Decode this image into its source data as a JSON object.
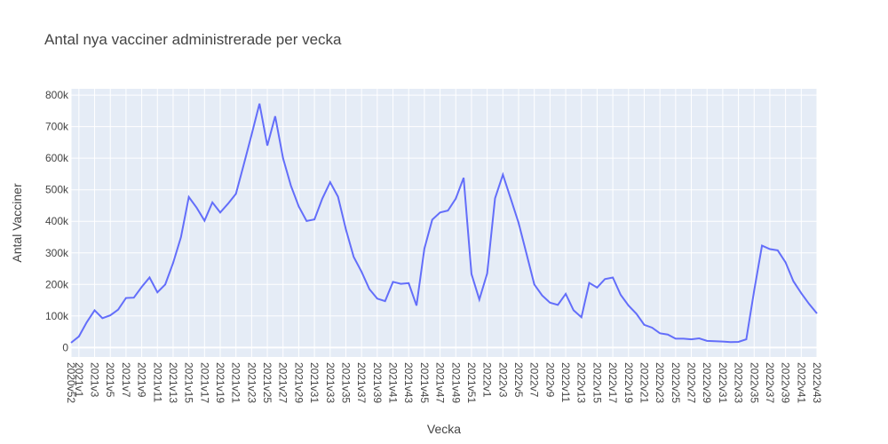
{
  "chart_data": {
    "type": "line",
    "title": "Antal nya vacciner administrerade per vecka",
    "xlabel": "Vecka",
    "ylabel": "Antal Vacciner",
    "ylim": [
      -30000,
      820000
    ],
    "y_ticks": [
      0,
      100000,
      200000,
      300000,
      400000,
      500000,
      600000,
      700000,
      800000
    ],
    "y_tick_labels": [
      "0",
      "100k",
      "200k",
      "300k",
      "400k",
      "500k",
      "600k",
      "700k",
      "800k"
    ],
    "x_tick_labels": [
      "2020v52",
      "2021v1",
      "2021v3",
      "2021v5",
      "2021v7",
      "2021v9",
      "2021v11",
      "2021v13",
      "2021v15",
      "2021v17",
      "2021v19",
      "2021v21",
      "2021v23",
      "2021v25",
      "2021v27",
      "2021v29",
      "2021v31",
      "2021v33",
      "2021v35",
      "2021v37",
      "2021v39",
      "2021v41",
      "2021v43",
      "2021v45",
      "2021v47",
      "2021v49",
      "2021v51",
      "2022v1",
      "2022v3",
      "2022v5",
      "2022v7",
      "2022v9",
      "2022v11",
      "2022v13",
      "2022v15",
      "2022v17",
      "2022v19",
      "2022v21",
      "2022v23",
      "2022v25",
      "2022v27",
      "2022v29",
      "2022v31",
      "2022v33",
      "2022v35",
      "2022v37",
      "2022v39",
      "2022v41",
      "2022v43"
    ],
    "grid": true,
    "colors": {
      "line": "#636efa",
      "plot_bg": "#e5ecf6",
      "grid": "#ffffff"
    },
    "categories": [
      "2020v52",
      "2021v1",
      "2021v2",
      "2021v3",
      "2021v4",
      "2021v5",
      "2021v6",
      "2021v7",
      "2021v8",
      "2021v9",
      "2021v10",
      "2021v11",
      "2021v12",
      "2021v13",
      "2021v14",
      "2021v15",
      "2021v16",
      "2021v17",
      "2021v18",
      "2021v19",
      "2021v20",
      "2021v21",
      "2021v22",
      "2021v23",
      "2021v24",
      "2021v25",
      "2021v26",
      "2021v27",
      "2021v28",
      "2021v29",
      "2021v30",
      "2021v31",
      "2021v32",
      "2021v33",
      "2021v34",
      "2021v35",
      "2021v36",
      "2021v37",
      "2021v38",
      "2021v39",
      "2021v40",
      "2021v41",
      "2021v42",
      "2021v43",
      "2021v44",
      "2021v45",
      "2021v46",
      "2021v47",
      "2021v48",
      "2021v49",
      "2021v50",
      "2021v51",
      "2021v52",
      "2022v1",
      "2022v2",
      "2022v3",
      "2022v4",
      "2022v5",
      "2022v6",
      "2022v7",
      "2022v8",
      "2022v9",
      "2022v10",
      "2022v11",
      "2022v12",
      "2022v13",
      "2022v14",
      "2022v15",
      "2022v16",
      "2022v17",
      "2022v18",
      "2022v19",
      "2022v20",
      "2022v21",
      "2022v22",
      "2022v23",
      "2022v24",
      "2022v25",
      "2022v26",
      "2022v27",
      "2022v28",
      "2022v29",
      "2022v30",
      "2022v31",
      "2022v32",
      "2022v33",
      "2022v34",
      "2022v35",
      "2022v36",
      "2022v37",
      "2022v38",
      "2022v39",
      "2022v40",
      "2022v41",
      "2022v42",
      "2022v43"
    ],
    "series": [
      {
        "values": [
          15000,
          35000,
          80000,
          118000,
          93000,
          102000,
          120000,
          157000,
          158000,
          192000,
          222000,
          175000,
          200000,
          268000,
          350000,
          477000,
          443000,
          402000,
          460000,
          428000,
          456000,
          487000,
          580000,
          675000,
          773000,
          640000,
          733000,
          600000,
          513000,
          447000,
          401000,
          406000,
          472000,
          524000,
          478000,
          375000,
          287000,
          240000,
          185000,
          155000,
          147000,
          208000,
          202000,
          204000,
          133000,
          313000,
          405000,
          428000,
          434000,
          472000,
          538000,
          233000,
          152000,
          235000,
          473000,
          548000,
          472000,
          395000,
          298000,
          200000,
          165000,
          142000,
          135000,
          170000,
          118000,
          96000,
          205000,
          190000,
          217000,
          222000,
          167000,
          133000,
          107000,
          72000,
          63000,
          45000,
          41000,
          28000,
          28000,
          26000,
          29000,
          21000,
          20000,
          19000,
          17000,
          18000,
          26000,
          180000,
          323000,
          312000,
          308000,
          270000,
          210000,
          172000,
          138000,
          108000
        ]
      }
    ]
  }
}
